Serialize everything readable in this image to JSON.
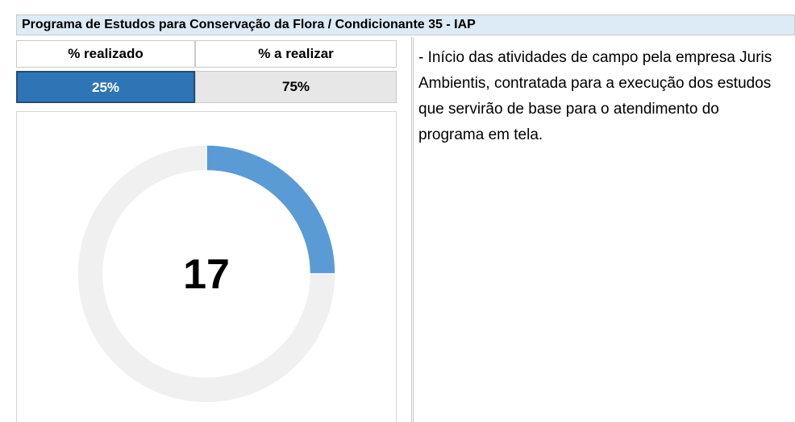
{
  "title": "Programa de Estudos para Conservação da Flora / Condicionante 35 - IAP",
  "chart_data": {
    "type": "donut",
    "categories": [
      "% realizado",
      "% a realizar"
    ],
    "values": [
      25,
      75
    ],
    "value_labels": [
      "25%",
      "75%"
    ],
    "colors": [
      "#5b9bd5",
      "#f0f0f0"
    ],
    "center_label": "17"
  },
  "notes": "- Início das atividades de campo pela empresa Juris Ambientis, contratada para a execução dos estudos que servirão de base para o atendimento do programa em tela."
}
